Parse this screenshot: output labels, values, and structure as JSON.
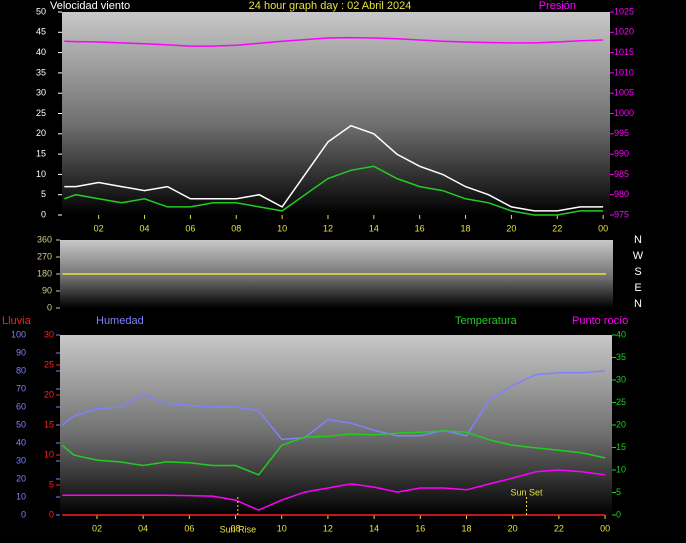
{
  "chart_data": [
    {
      "type": "line",
      "title": "24 hour graph day : 02 Abril 2024",
      "y_label": "Velocidad viento",
      "y2_label": "Presión",
      "x": [
        0.5,
        1,
        2,
        3,
        4,
        5,
        6,
        7,
        8,
        9,
        10,
        11,
        12,
        13,
        14,
        15,
        16,
        17,
        18,
        19,
        20,
        21,
        22,
        23,
        24
      ],
      "xlim": [
        0.4,
        24.3
      ],
      "xticks": [
        {
          "value": 2,
          "label": "02"
        },
        {
          "value": 4,
          "label": "04"
        },
        {
          "value": 6,
          "label": "06"
        },
        {
          "value": 8,
          "label": "08"
        },
        10,
        12,
        14,
        16,
        18,
        20,
        22,
        {
          "value": 24,
          "label": "00"
        }
      ],
      "ylim": [
        0,
        50
      ],
      "yticks": [
        0,
        5,
        10,
        15,
        20,
        25,
        30,
        35,
        40,
        45,
        50
      ],
      "y_color": "#ffffff",
      "y2lim": [
        975,
        1025
      ],
      "y2ticks": [
        975,
        980,
        985,
        990,
        995,
        1000,
        1005,
        1010,
        1015,
        1020,
        1025
      ],
      "y2_color": "#ff00ff",
      "series": [
        {
          "color": "#ffffff",
          "values": [
            7,
            7,
            8,
            7,
            6,
            7,
            4,
            4,
            4,
            5,
            2,
            10,
            18,
            22,
            20,
            15,
            12,
            10,
            7,
            5,
            2,
            1,
            1,
            2,
            2
          ]
        },
        {
          "color": "#22cc22",
          "values": [
            4,
            5,
            4,
            3,
            4,
            2,
            2,
            3,
            3,
            2,
            1,
            5,
            9,
            11,
            12,
            9,
            7,
            6,
            4,
            3,
            1,
            0,
            0,
            1,
            1
          ]
        },
        {
          "color": "#ff00ff",
          "axis": "y2",
          "values": [
            1017.8,
            1017.7,
            1017.6,
            1017.4,
            1017.2,
            1016.9,
            1016.6,
            1016.6,
            1016.8,
            1017.3,
            1017.8,
            1018.2,
            1018.6,
            1018.7,
            1018.6,
            1018.4,
            1018.1,
            1017.8,
            1017.6,
            1017.5,
            1017.4,
            1017.4,
            1017.6,
            1017.9,
            1018.1
          ]
        }
      ]
    },
    {
      "type": "line",
      "x": [
        0.5,
        1,
        2,
        3,
        4,
        5,
        6,
        7,
        8,
        9,
        10,
        11,
        12,
        13,
        14,
        15,
        16,
        17,
        18,
        19,
        20,
        21,
        22,
        23,
        24
      ],
      "xlim": [
        0.4,
        24.3
      ],
      "ylim": [
        0,
        360
      ],
      "yticks": [
        0,
        90,
        180,
        270,
        360
      ],
      "y_color": "#d8c890",
      "direction_labels": [
        "N",
        "W",
        "S",
        "E",
        "N"
      ],
      "series": [
        {
          "color": "#e8e040",
          "values": [
            180,
            180,
            180,
            180,
            180,
            180,
            180,
            180,
            180,
            180,
            180,
            180,
            180,
            180,
            180,
            180,
            180,
            180,
            180,
            180,
            180,
            180,
            180,
            180,
            180
          ]
        }
      ]
    },
    {
      "type": "line",
      "x": [
        0.5,
        1,
        2,
        3,
        4,
        5,
        6,
        7,
        8,
        9,
        10,
        11,
        12,
        13,
        14,
        15,
        16,
        17,
        18,
        19,
        20,
        21,
        22,
        23,
        24
      ],
      "xlim": [
        0.4,
        24.3
      ],
      "xticks": [
        {
          "value": 2,
          "label": "02"
        },
        {
          "value": 4,
          "label": "04"
        },
        {
          "value": 6,
          "label": "06"
        },
        {
          "value": 8,
          "label": "08"
        },
        10,
        12,
        14,
        16,
        18,
        20,
        22,
        {
          "value": 24,
          "label": "00"
        }
      ],
      "ylim": [
        0,
        30
      ],
      "yticks": [
        0,
        5,
        10,
        15,
        20,
        25,
        30
      ],
      "y_color": "#ff2020",
      "y3lim": [
        0,
        100
      ],
      "y3ticks": [
        0,
        10,
        20,
        30,
        40,
        50,
        60,
        70,
        80,
        90,
        100
      ],
      "y3_color": "#8080ff",
      "y2lim": [
        0,
        40
      ],
      "y2ticks": [
        0,
        5,
        10,
        15,
        20,
        25,
        30,
        35,
        40
      ],
      "y2_color": "#22cc22",
      "series": [
        {
          "name": "Humedad",
          "color": "#8080ff",
          "axis": "y3",
          "values": [
            50,
            55,
            59,
            60,
            67,
            62,
            61,
            60,
            60,
            58,
            42,
            43,
            53,
            51,
            47,
            44,
            44,
            47,
            44,
            64,
            72,
            78,
            79,
            79,
            80
          ]
        },
        {
          "name": "Temperatura",
          "color": "#22cc22",
          "axis": "y2",
          "values": [
            15.5,
            13.3,
            12.2,
            11.8,
            11,
            11.8,
            11.6,
            11,
            11,
            8.9,
            15.5,
            17.3,
            17.5,
            18,
            17.8,
            18.2,
            18.4,
            18.7,
            18.4,
            16.7,
            15.5,
            14.9,
            14.4,
            13.8,
            12.7
          ]
        },
        {
          "name": "Punto rocío",
          "color": "#ff00ff",
          "axis": "y2",
          "values": [
            4.4,
            4.4,
            4.4,
            4.4,
            4.4,
            4.4,
            4.3,
            4.2,
            3.3,
            1.1,
            3.3,
            5.1,
            6,
            6.9,
            6.2,
            5.1,
            6,
            6,
            5.6,
            6.9,
            8.2,
            9.6,
            10,
            9.6,
            8.9
          ]
        },
        {
          "name": "Lluvia",
          "color": "#ff2020",
          "values": [
            0,
            0,
            0,
            0,
            0,
            0,
            0,
            0,
            0,
            0,
            0,
            0,
            0,
            0,
            0,
            0,
            0,
            0,
            0,
            0,
            0,
            0,
            0,
            0,
            0
          ]
        }
      ],
      "annotations": [
        {
          "text": "Sun Rise",
          "x": 8.1
        },
        {
          "text": "Sun Set",
          "x": 20.6
        }
      ]
    }
  ]
}
